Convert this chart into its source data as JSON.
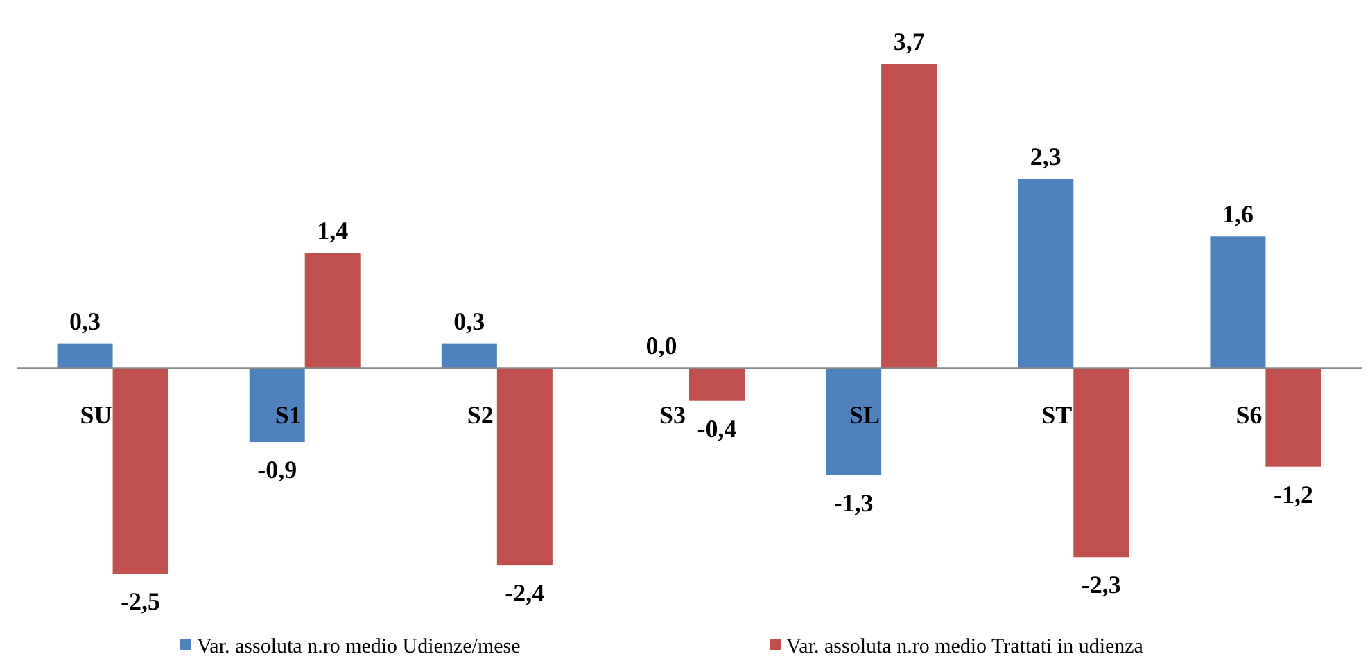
{
  "chart_data": {
    "type": "bar",
    "categories": [
      "SU",
      "S1",
      "S2",
      "S3",
      "SL",
      "ST",
      "S6"
    ],
    "series": [
      {
        "name": "Var. assoluta n.ro medio Udienze/mese",
        "color": "#4f81bd",
        "values": [
          0.3,
          -0.9,
          0.3,
          0.0,
          -1.3,
          2.3,
          1.6
        ],
        "value_labels": [
          "0,3",
          "-0,9",
          "0,3",
          "0,0",
          "-1,3",
          "2,3",
          "1,6"
        ]
      },
      {
        "name": "Var. assoluta n.ro medio Trattati in udienza",
        "color": "#c0504d",
        "values": [
          -2.5,
          1.4,
          -2.4,
          -0.4,
          3.7,
          -2.3,
          -1.2
        ],
        "value_labels": [
          "-2,5",
          "1,4",
          "-2,4",
          "-0,4",
          "3,7",
          "-2,3",
          "-1,2"
        ]
      }
    ],
    "legend": "bottom",
    "grid": false
  }
}
